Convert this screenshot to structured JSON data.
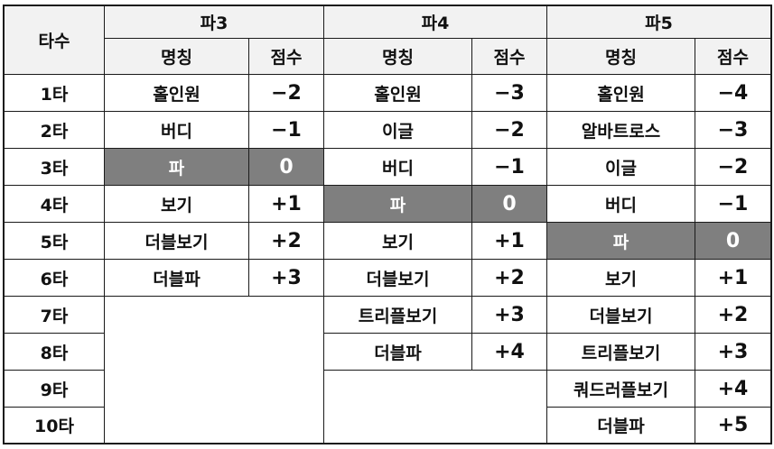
{
  "header": {
    "stroke_label": "타수",
    "name_label": "명칭",
    "score_label": "점수",
    "groups": [
      "파3",
      "파4",
      "파5"
    ]
  },
  "strokes": [
    "1타",
    "2타",
    "3타",
    "4타",
    "5타",
    "6타",
    "7타",
    "8타",
    "9타",
    "10타"
  ],
  "par3": [
    {
      "name": "홀인원",
      "score": "−2"
    },
    {
      "name": "버디",
      "score": "−1"
    },
    {
      "name": "파",
      "score": "0",
      "highlight": true
    },
    {
      "name": "보기",
      "score": "+1"
    },
    {
      "name": "더블보기",
      "score": "+2"
    },
    {
      "name": "더블파",
      "score": "+3"
    }
  ],
  "par4": [
    {
      "name": "홀인원",
      "score": "−3"
    },
    {
      "name": "이글",
      "score": "−2"
    },
    {
      "name": "버디",
      "score": "−1"
    },
    {
      "name": "파",
      "score": "0",
      "highlight": true
    },
    {
      "name": "보기",
      "score": "+1"
    },
    {
      "name": "더블보기",
      "score": "+2"
    },
    {
      "name": "트리플보기",
      "score": "+3"
    },
    {
      "name": "더블파",
      "score": "+4"
    }
  ],
  "par5": [
    {
      "name": "홀인원",
      "score": "−4"
    },
    {
      "name": "알바트로스",
      "score": "−3"
    },
    {
      "name": "이글",
      "score": "−2"
    },
    {
      "name": "버디",
      "score": "−1"
    },
    {
      "name": "파",
      "score": "0",
      "highlight": true
    },
    {
      "name": "보기",
      "score": "+1"
    },
    {
      "name": "더블보기",
      "score": "+2"
    },
    {
      "name": "트리플보기",
      "score": "+3"
    },
    {
      "name": "쿼드러플보기",
      "score": "+4"
    },
    {
      "name": "더블파",
      "score": "+5"
    }
  ],
  "colors": {
    "header_bg": "#f2f2f2",
    "par_highlight_bg": "#7f7f7f",
    "par_highlight_text": "#ffffff",
    "border": "#1a1a1a"
  }
}
